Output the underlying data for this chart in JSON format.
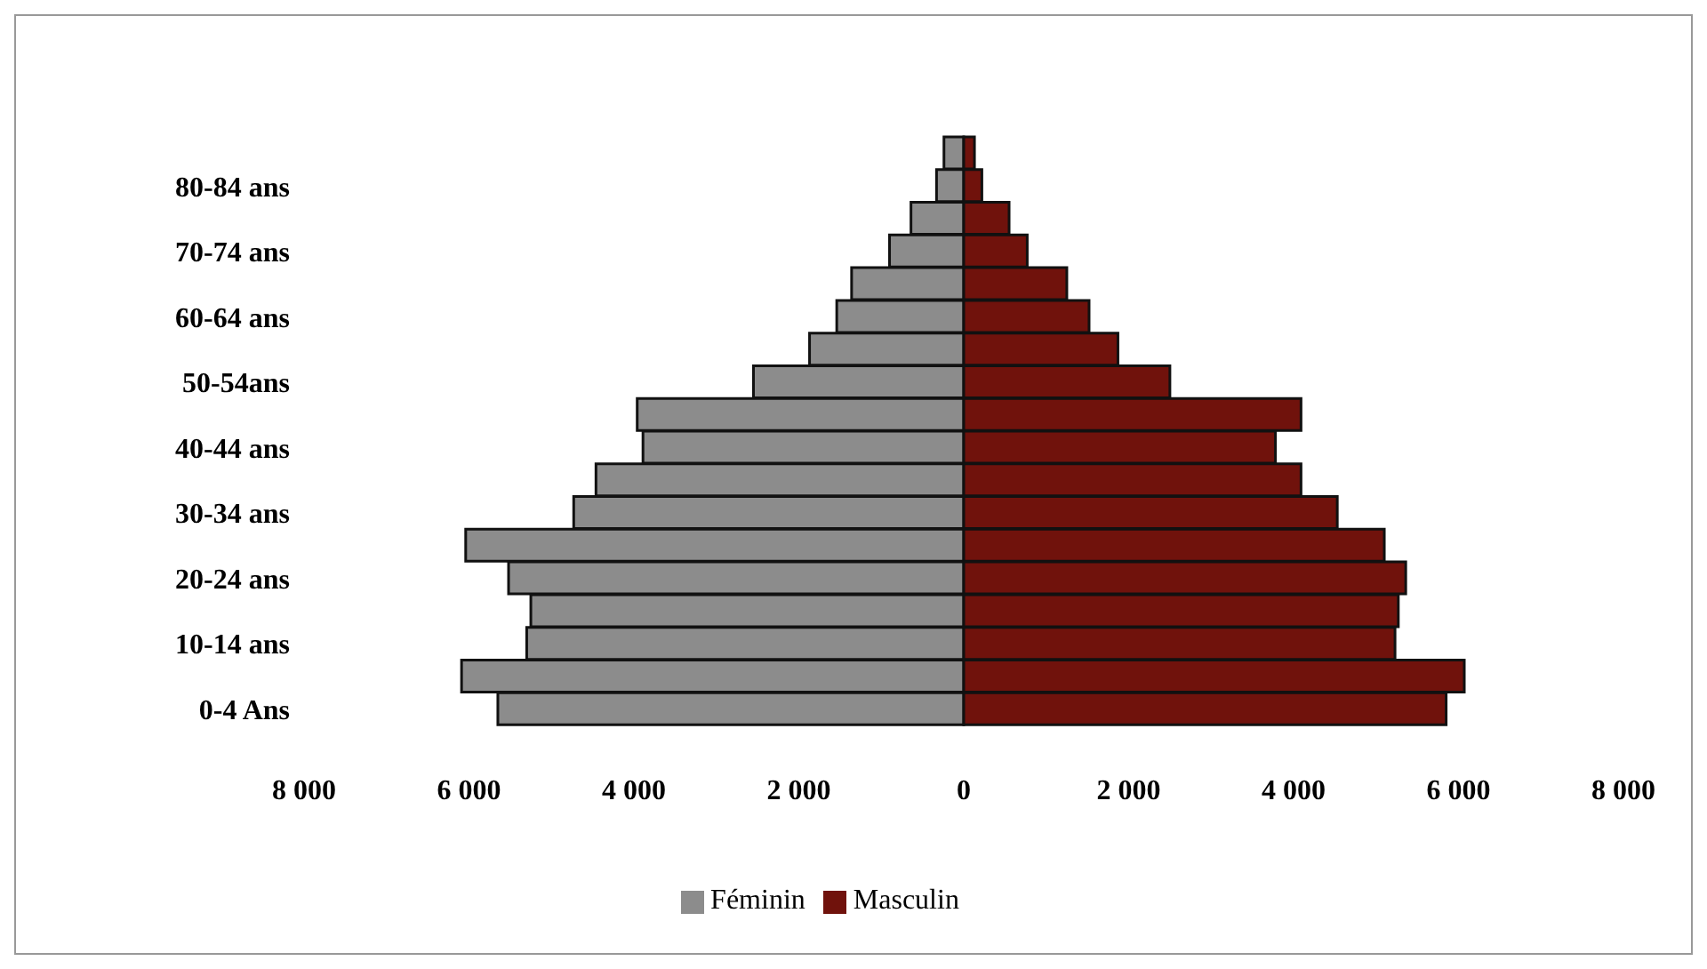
{
  "chart_data": {
    "type": "bar",
    "orientation": "horizontal",
    "stacked": true,
    "categories": [
      null,
      "80-84 ans",
      null,
      "70-74 ans",
      null,
      "60-64 ans",
      null,
      "50-54ans",
      null,
      "40-44 ans",
      null,
      "30-34 ans",
      null,
      "20-24 ans",
      null,
      "10-14 ans",
      null,
      "0-4 Ans"
    ],
    "series": [
      {
        "name": "Féminin",
        "color": "#8c8c8c",
        "values": [
          -240,
          -330,
          -640,
          -900,
          -1360,
          -1540,
          -1870,
          -2550,
          -3960,
          -3890,
          -4460,
          -4730,
          -6040,
          -5520,
          -5250,
          -5300,
          -6090,
          -5650
        ]
      },
      {
        "name": "Masculin",
        "color": "#70120c",
        "values": [
          130,
          220,
          550,
          770,
          1250,
          1520,
          1870,
          2500,
          4090,
          3780,
          4090,
          4530,
          5100,
          5360,
          5270,
          5230,
          6070,
          5850
        ]
      }
    ],
    "xlim": [
      -8000,
      8000
    ],
    "xticks": [
      {
        "value": -8000,
        "label": "8 000"
      },
      {
        "value": -6000,
        "label": "6 000"
      },
      {
        "value": -4000,
        "label": "4 000"
      },
      {
        "value": -2000,
        "label": "2 000"
      },
      0,
      {
        "value": 2000,
        "label": "2 000"
      },
      {
        "value": 4000,
        "label": "4 000"
      },
      {
        "value": 6000,
        "label": "6 000"
      },
      {
        "value": 8000,
        "label": "8 000"
      }
    ],
    "grid": false,
    "legend": "bottom"
  }
}
